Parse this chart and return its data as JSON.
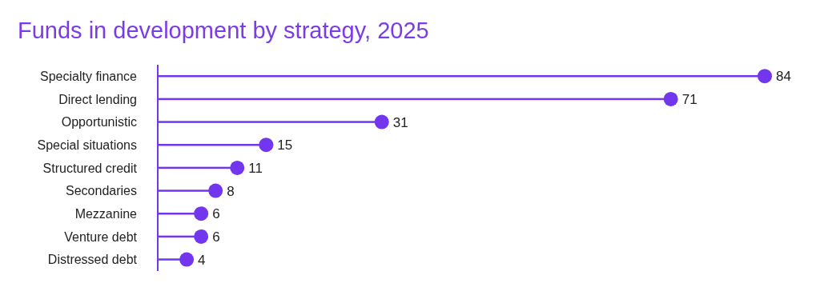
{
  "chart_data": {
    "type": "lollipop",
    "title": "Funds in development by strategy, 2025",
    "orientation": "horizontal",
    "categories": [
      "Specialty finance",
      "Direct lending",
      "Opportunistic",
      "Special situations",
      "Structured credit",
      "Secondaries",
      "Mezzanine",
      "Venture debt",
      "Distressed debt"
    ],
    "values": [
      84,
      71,
      31,
      15,
      11,
      8,
      6,
      6,
      4
    ],
    "color": "#7236ee",
    "data_labels": true
  }
}
